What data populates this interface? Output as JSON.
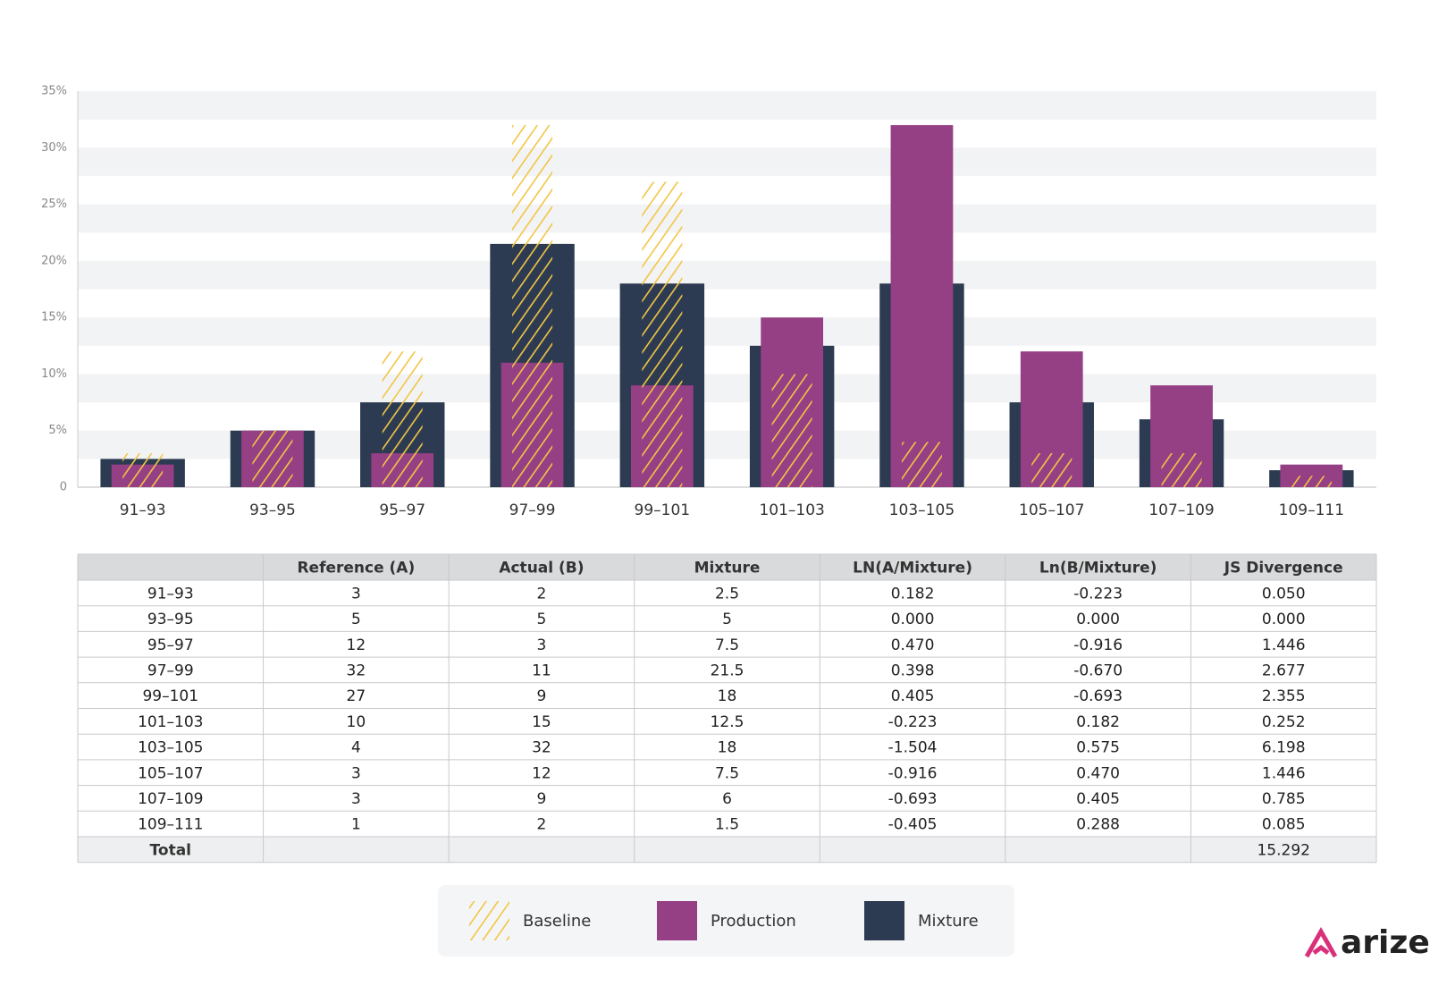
{
  "chart_data": {
    "type": "bar",
    "categories": [
      "91–93",
      "93–95",
      "95–97",
      "97–99",
      "99–101",
      "101–103",
      "103–105",
      "105–107",
      "107–109",
      "109–111"
    ],
    "series": [
      {
        "name": "Mixture",
        "color": "#2d3b52",
        "values": [
          2.5,
          5,
          7.5,
          21.5,
          18,
          12.5,
          18,
          7.5,
          6,
          1.5
        ]
      },
      {
        "name": "Production",
        "color": "#953f84",
        "values": [
          2,
          5,
          3,
          11,
          9,
          15,
          32,
          12,
          9,
          2
        ]
      },
      {
        "name": "Baseline",
        "color": "#f2c544",
        "pattern": "hatch",
        "values": [
          3,
          5,
          12,
          32,
          27,
          10,
          4,
          3,
          3,
          1
        ]
      }
    ],
    "ylim": [
      0,
      35
    ],
    "yticks": [
      0,
      {
        "value": 5,
        "label": "5%"
      },
      {
        "value": 10,
        "label": "10%"
      },
      {
        "value": 15,
        "label": "15%"
      },
      {
        "value": 20,
        "label": "20%"
      },
      {
        "value": 25,
        "label": "25%"
      },
      {
        "value": 30,
        "label": "30%"
      },
      {
        "value": 35,
        "label": "35%"
      }
    ],
    "grid": true,
    "legend": "bottom"
  },
  "table": {
    "columns": [
      "Reference (A)",
      "Actual (B)",
      "Mixture",
      "LN(A/Mixture)",
      "Ln(B/Mixture)",
      "JS Divergence"
    ],
    "rows": [
      [
        "91–93",
        "3",
        "2",
        "2.5",
        "0.182",
        "-0.223",
        "0.050"
      ],
      [
        "93–95",
        "5",
        "5",
        "5",
        "0.000",
        "0.000",
        "0.000"
      ],
      [
        "95–97",
        "12",
        "3",
        "7.5",
        "0.470",
        "-0.916",
        "1.446"
      ],
      [
        "97–99",
        "32",
        "11",
        "21.5",
        "0.398",
        "-0.670",
        "2.677"
      ],
      [
        "99–101",
        "27",
        "9",
        "18",
        "0.405",
        "-0.693",
        "2.355"
      ],
      [
        "101–103",
        "10",
        "15",
        "12.5",
        "-0.223",
        "0.182",
        "0.252"
      ],
      [
        "103–105",
        "4",
        "32",
        "18",
        "-1.504",
        "0.575",
        "6.198"
      ],
      [
        "105–107",
        "3",
        "12",
        "7.5",
        "-0.916",
        "0.470",
        "1.446"
      ],
      [
        "107–109",
        "3",
        "9",
        "6",
        "-0.693",
        "0.405",
        "0.785"
      ],
      [
        "109–111",
        "1",
        "2",
        "1.5",
        "-0.405",
        "0.288",
        "0.085"
      ]
    ],
    "total": {
      "label": "Total",
      "js_divergence": "15.292"
    }
  },
  "logo": "arize"
}
